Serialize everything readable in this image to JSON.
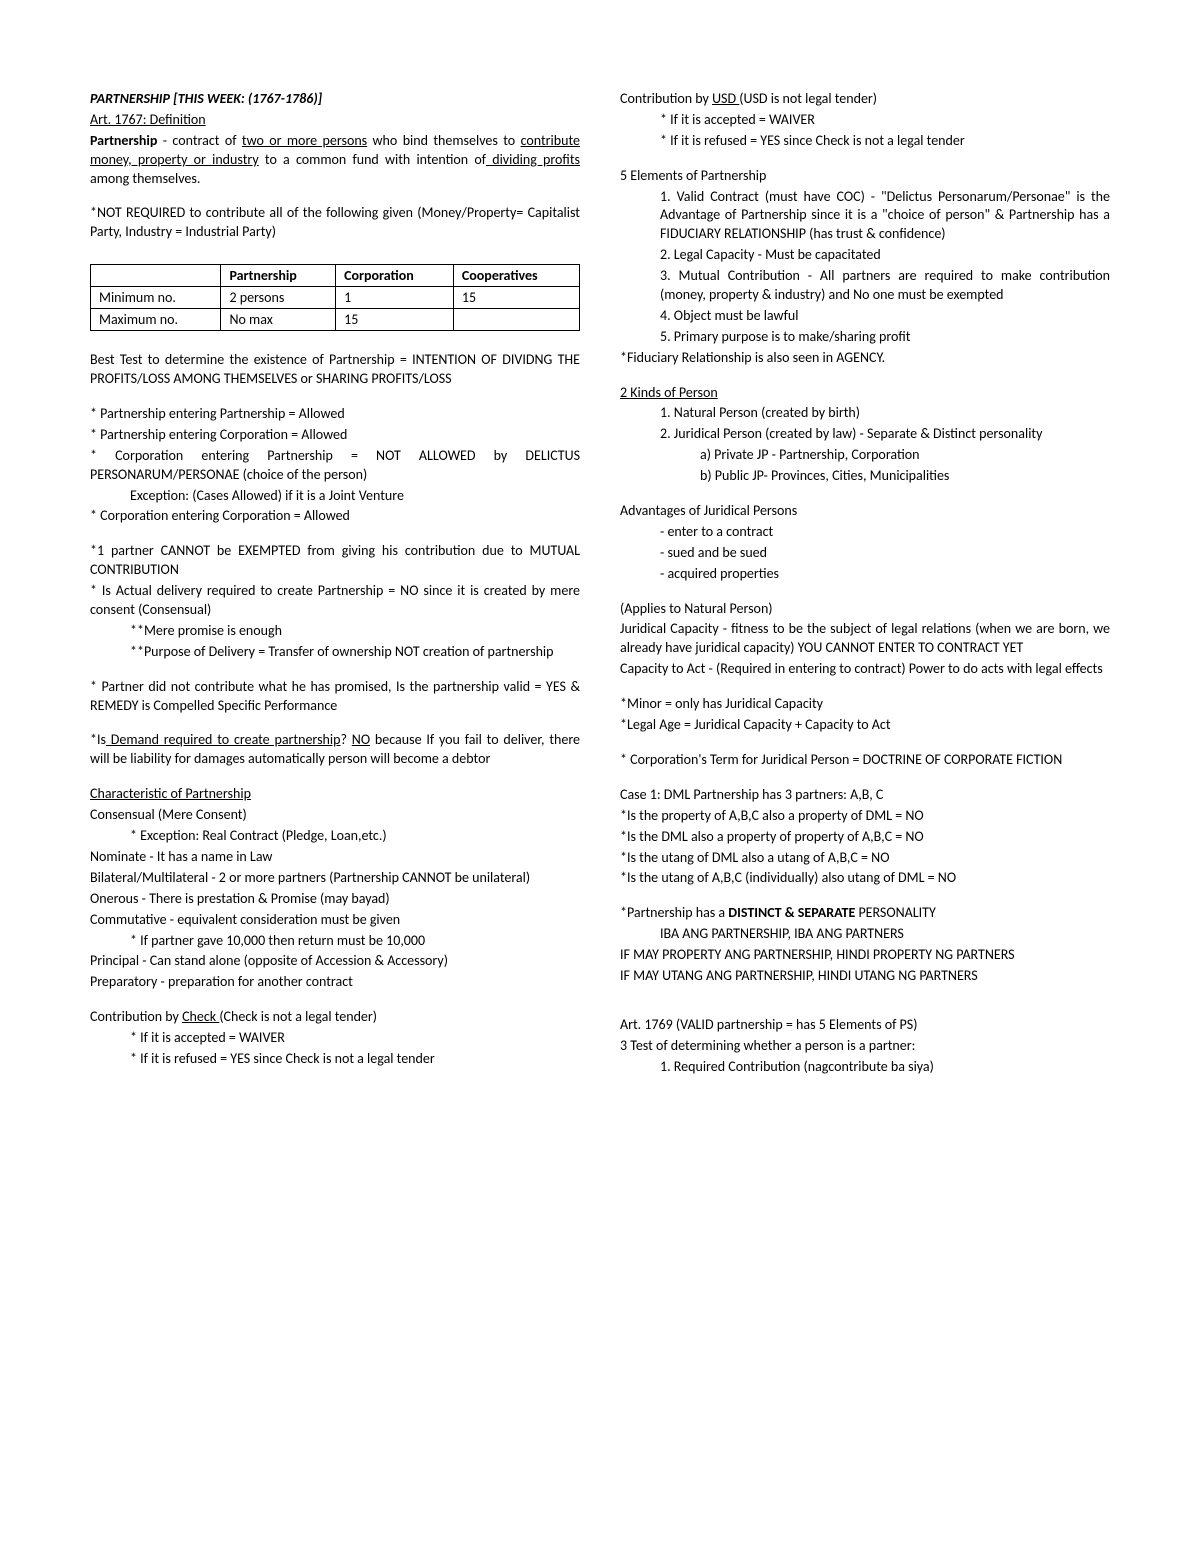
{
  "left": {
    "title": "PARTNERSHIP [THIS WEEK: (1767-1786)]",
    "art_def": "Art. 1767: Definition",
    "def_pre": "Partnership",
    "def_mid1": " - contract of ",
    "def_u1": "two or more persons",
    "def_mid2": " who bind themselves to ",
    "def_u2": "contribute money, property or industry",
    "def_mid3": " to a common fund with intention of",
    "def_u3": " dividing profits ",
    "def_end": "among themselves.",
    "not_required": "*NOT REQUIRED to contribute all of the following given (Money/Property= Capitalist Party, Industry = Industrial Party)",
    "table": {
      "h1": "",
      "h2": "Partnership",
      "h3": "Corporation",
      "h4": "Cooperatives",
      "r1c1": "Minimum no.",
      "r1c2": "2 persons",
      "r1c3": "1",
      "r1c4": "15",
      "r2c1": "Maximum no.",
      "r2c2": "No max",
      "r2c3": "15",
      "r2c4": ""
    },
    "best_test": "Best Test to determine the existence of Partnership = INTENTION OF DIVIDNG THE PROFITS/LOSS AMONG THEMSELVES or SHARING PROFITS/LOSS",
    "b1": "* Partnership entering Partnership = Allowed",
    "b2": "* Partnership entering Corporation = Allowed",
    "b3": "* Corporation entering Partnership = NOT ALLOWED by DELICTUS PERSONARUM/PERSONAE (choice of the person)",
    "b3e": "Exception: (Cases Allowed) if it is a Joint Venture",
    "b4": "* Corporation entering Corporation = Allowed",
    "mc1": "*1 partner CANNOT be EXEMPTED from giving his contribution due to MUTUAL CONTRIBUTION",
    "mc2": "* Is Actual delivery required to create Partnership = NO since it is created by mere consent (Consensual)",
    "mc2a": "**Mere promise is enough",
    "mc2b": "**Purpose of Delivery = Transfer of ownership NOT creation of partnership",
    "mc3": "* Partner did not contribute what he has promised, Is the partnership valid = YES & REMEDY is Compelled Specific Performance",
    "mc4a": "*Is",
    "mc4u": " Demand required to create partnership",
    "mc4b": "? ",
    "mc4no": "NO",
    "mc4c": " because If you fail to deliver, there will be liability for damages automatically person will become a debtor",
    "char_h": "Characteristic of Partnership",
    "c1": "Consensual (Mere Consent)",
    "c1e": "* Exception: Real Contract (Pledge, Loan,etc.)",
    "c2": "Nominate - It has a name in Law",
    "c3": "Bilateral/Multilateral - 2 or more partners (Partnership CANNOT be unilateral)",
    "c4": "Onerous - There is prestation & Promise (may bayad)",
    "c5": "Commutative - equivalent consideration must be given",
    "c5e": "* If partner gave 10,000 then return must be 10,000",
    "c6": "Principal - Can stand alone (opposite of Accession & Accessory)",
    "c7": "Preparatory - preparation for another contract",
    "check_pre": "Contribution by ",
    "check_u": "Check ",
    "check_post": "(Check is not a legal tender)",
    "check1": "* If it is accepted = WAIVER",
    "check2": "* If it is refused = YES since Check is not a legal     tender"
  },
  "right": {
    "usd_pre": "Contribution by ",
    "usd_u": "USD ",
    "usd_post": "(USD is not legal tender)",
    "usd1": "* If it is accepted = WAIVER",
    "usd2": "* If it is refused = YES since Check is not a legal     tender",
    "elem_h": "5 Elements of Partnership",
    "e1": "1. Valid Contract (must have COC) - \"Delictus Personarum/Personae\" is the Advantage of Partnership since it is a \"choice of person\" & Partnership has a FIDUCIARY RELATIONSHIP (has trust & confidence)",
    "e2": "2. Legal Capacity - Must be capacitated",
    "e3": "3. Mutual Contribution - All partners are required to make contribution (money, property & industry) and No one must be exempted",
    "e4": "4. Object must be lawful",
    "e5": "5. Primary purpose is to make/sharing profit",
    "fid": "*Fiduciary Relationship is also seen in AGENCY.",
    "kinds_h": "2 Kinds of Person",
    "k1": "1. Natural Person (created by birth)",
    "k2": "2. Juridical Person (created by law) - Separate & Distinct personality",
    "k2a": "a)     Private JP - Partnership, Corporation",
    "k2b": "b)     Public JP- Provinces, Cities, Municipalities",
    "adv_h": "Advantages of Juridical Persons",
    "a1": "- enter to a contract",
    "a2": "- sued and be sued",
    "a3": "- acquired properties",
    "nat_h": "(Applies to Natural Person)",
    "jc": "Juridical Capacity - fitness to be the subject of legal relations (when we are born, we already have juridical capacity) YOU CANNOT ENTER TO CONTRACT YET",
    "ca": "Capacity to Act - (Required in entering to contract) Power to do acts with legal effects",
    "minor": "*Minor = only has Juridical Capacity",
    "legal": "*Legal Age = Juridical Capacity + Capacity to Act",
    "corp": "* Corporation's Term for Juridical Person = DOCTRINE OF CORPORATE FICTION",
    "case_h": "Case 1: DML Partnership has 3 partners: A,B, C",
    "case1": "*Is the property of A,B,C also a property of DML = NO",
    "case2": "*Is the DML also a property of property of A,B,C = NO",
    "case3": "*Is the  utang of DML also a utang of A,B,C = NO",
    "case4": " *Is the utang of A,B,C (individually) also utang of DML = NO",
    "dist_pre": "*Partnership has a ",
    "dist_bold": "DISTINCT & SEPARATE",
    "dist_post": " PERSONALITY",
    "dist_sub": "IBA ANG PARTNERSHIP, IBA ANG PARTNERS",
    "prop": "IF MAY PROPERTY ANG PARTNERSHIP, HINDI PROPERTY NG PARTNERS",
    "utang": "IF MAY UTANG ANG PARTNERSHIP, HINDI UTANG NG PARTNERS",
    "art1769": "Art. 1769 (VALID partnership = has 5 Elements of PS)",
    "test_h": "3 Test of determining whether a person is a partner:",
    "t1": "1. Required Contribution (nagcontribute ba siya)"
  }
}
